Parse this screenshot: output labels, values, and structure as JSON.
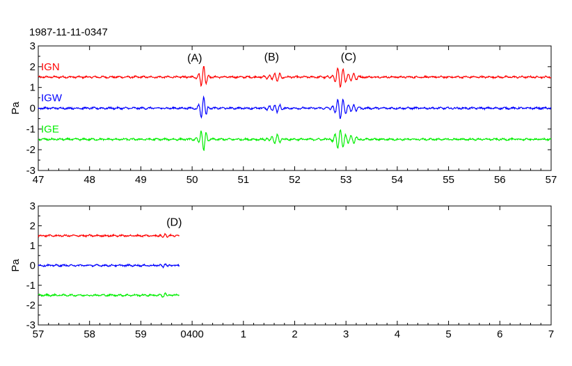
{
  "title": "1987-11-11-0347",
  "chart_data": [
    {
      "type": "line",
      "ylabel": "Pa",
      "ylim": [
        -3,
        3
      ],
      "xlim": [
        47,
        57
      ],
      "yticks": [
        "3",
        "2",
        "1",
        "0",
        "-1",
        "-2",
        "-3"
      ],
      "x_ticks": [
        47,
        48,
        49,
        50,
        51,
        52,
        53,
        54,
        55,
        56,
        57
      ],
      "x_tick_labels": [
        "47",
        "48",
        "49",
        "50",
        "51",
        "52",
        "53",
        "54",
        "55",
        "56",
        "57"
      ],
      "series": [
        {
          "name": "IGN",
          "color": "#ff0000",
          "offset": 1.5
        },
        {
          "name": "IGW",
          "color": "#0000ff",
          "offset": 0
        },
        {
          "name": "IGE",
          "color": "#00ee00",
          "offset": -1.5
        }
      ],
      "annotations": [
        {
          "text": "(A)",
          "x": 50.05,
          "y": 2.25
        },
        {
          "text": "(B)",
          "x": 51.55,
          "y": 2.3
        },
        {
          "text": "(C)",
          "x": 53.05,
          "y": 2.3
        }
      ],
      "bursts": [
        {
          "x": 50.2,
          "amp": 0.65,
          "width": 0.09
        },
        {
          "x": 51.6,
          "amp": 0.35,
          "width": 0.12
        },
        {
          "x": 52.95,
          "amp": 0.55,
          "width": 0.2
        }
      ]
    },
    {
      "type": "line",
      "ylabel": "Pa",
      "ylim": [
        -3,
        3
      ],
      "xlim": [
        57,
        67
      ],
      "yticks": [
        "3",
        "2",
        "1",
        "0",
        "-1",
        "-2",
        "-3"
      ],
      "x_ticks": [
        57,
        58,
        59,
        60,
        61,
        62,
        63,
        64,
        65,
        66,
        67
      ],
      "x_tick_labels": [
        "57",
        "58",
        "59",
        "0400",
        "1",
        "2",
        "3",
        "4",
        "5",
        "6",
        "7"
      ],
      "data_end_x": 59.75,
      "series": [
        {
          "name": "IGN",
          "color": "#ff0000",
          "offset": 1.5
        },
        {
          "name": "IGW",
          "color": "#0000ff",
          "offset": 0
        },
        {
          "name": "IGE",
          "color": "#00ee00",
          "offset": -1.5
        }
      ],
      "annotations": [
        {
          "text": "(D)",
          "x": 59.65,
          "y": 2.0
        }
      ],
      "bursts": [
        {
          "x": 59.45,
          "amp": 0.12,
          "width": 0.08
        }
      ]
    }
  ]
}
